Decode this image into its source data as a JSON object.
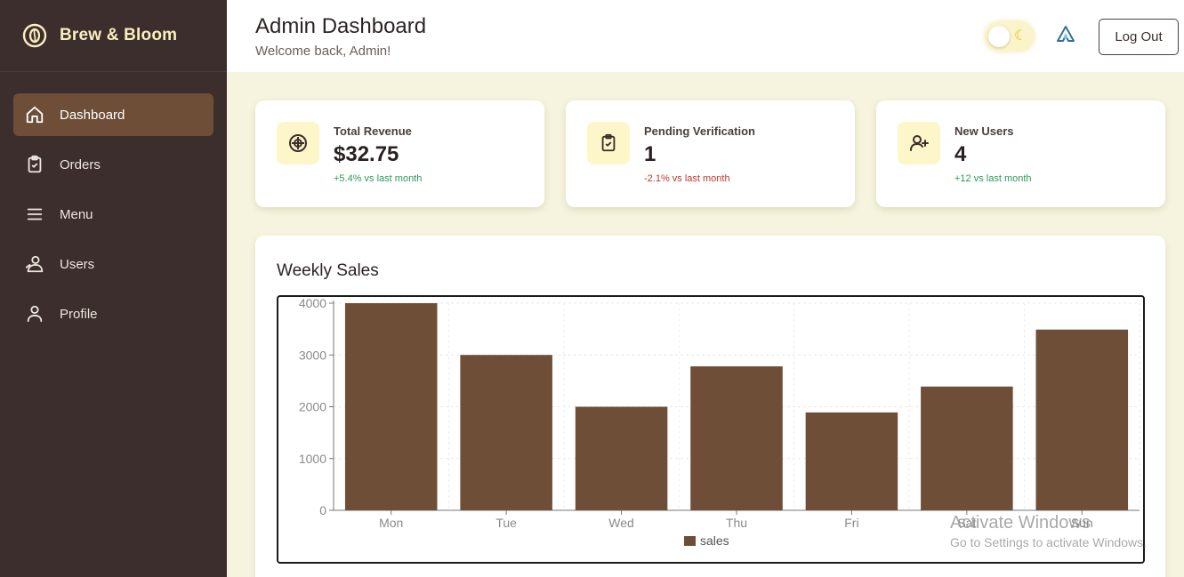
{
  "brand": {
    "name": "Brew & Bloom",
    "logo_icon": "coffee-bean-icon"
  },
  "sidebar": {
    "items": [
      {
        "label": "Dashboard",
        "icon": "home-icon",
        "active": true
      },
      {
        "label": "Orders",
        "icon": "clipboard-check-icon",
        "active": false
      },
      {
        "label": "Menu",
        "icon": "menu-lines-icon",
        "active": false
      },
      {
        "label": "Users",
        "icon": "users-icon",
        "active": false
      },
      {
        "label": "Profile",
        "icon": "user-icon",
        "active": false
      }
    ]
  },
  "header": {
    "title": "Admin Dashboard",
    "subtitle": "Welcome back, Admin!",
    "theme_toggle_icon": "moon-icon",
    "logout_label": "Log Out"
  },
  "stats": [
    {
      "label": "Total Revenue",
      "value": "$32.75",
      "trend": "+5.4% vs last month",
      "direction": "up",
      "icon": "dollar-circle-icon"
    },
    {
      "label": "Pending Verification",
      "value": "1",
      "trend": "-2.1% vs last month",
      "direction": "down",
      "icon": "clipboard-check-icon"
    },
    {
      "label": "New Users",
      "value": "4",
      "trend": "+12 vs last month",
      "direction": "up",
      "icon": "user-plus-icon"
    }
  ],
  "chart_title": "Weekly Sales",
  "chart_data": {
    "type": "bar",
    "categories": [
      "Mon",
      "Tue",
      "Wed",
      "Thu",
      "Fri",
      "Sat",
      "Sun"
    ],
    "series": [
      {
        "name": "sales",
        "values": [
          4000,
          3000,
          2000,
          2780,
          1890,
          2390,
          3490
        ]
      }
    ],
    "yticks": [
      0,
      1000,
      2000,
      3000,
      4000
    ],
    "ylim": [
      0,
      4000
    ],
    "grid": true,
    "legend": "bottom",
    "bar_color": "#6f4e37"
  },
  "watermark": {
    "title": "Activate Windows",
    "subtitle": "Go to Settings to activate Windows."
  }
}
